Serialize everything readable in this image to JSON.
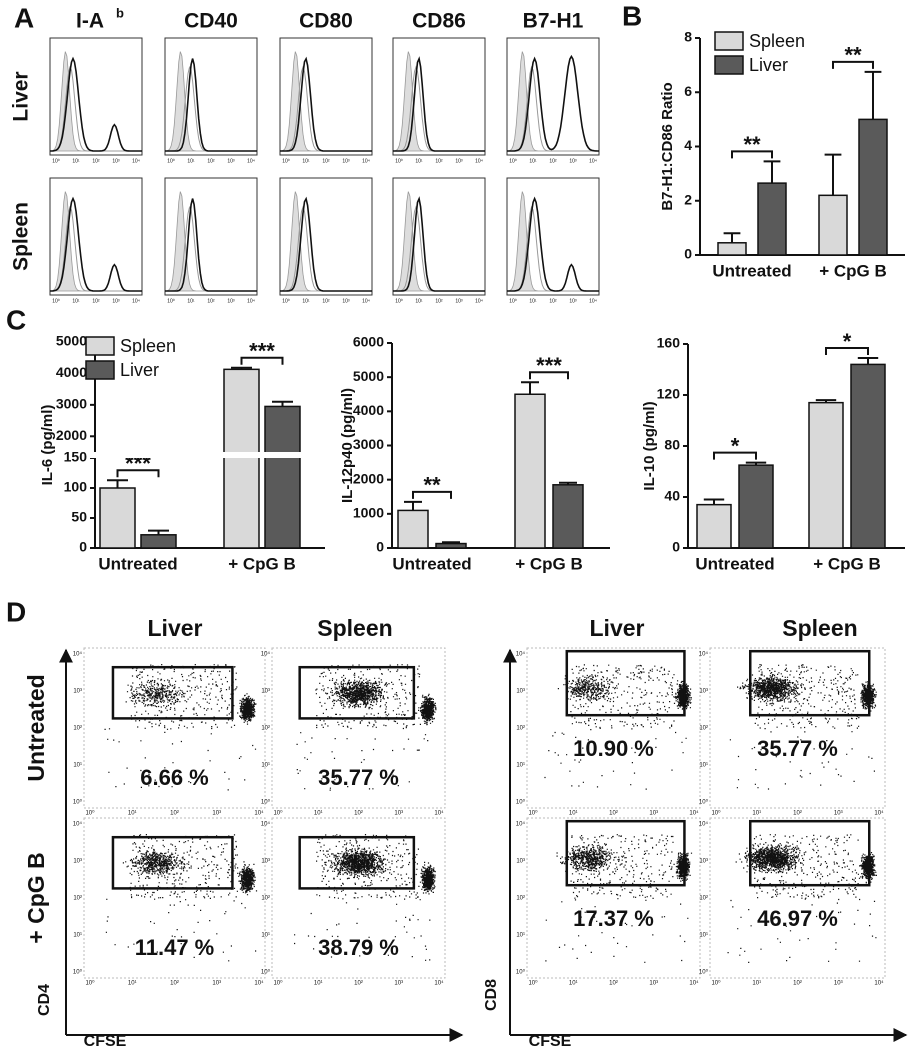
{
  "panel_labels": [
    "A",
    "B",
    "C",
    "D"
  ],
  "panel_a": {
    "columns": [
      "I-A",
      "CD40",
      "CD80",
      "CD86",
      "B7-H1"
    ],
    "first_column_sup": "b",
    "rows": [
      "Liver",
      "Spleen"
    ]
  },
  "log_tick_labels": [
    "10⁰",
    "10¹",
    "10²",
    "10³",
    "10⁴"
  ],
  "chart_data": [
    {
      "type": "bar",
      "y_label": "B7-H1:CD86 Ratio",
      "categories": [
        "Untreated",
        "+ CpG B"
      ],
      "series": [
        {
          "name": "Spleen",
          "color": "#d9d9d9",
          "values": [
            0.45,
            2.2
          ],
          "errors": [
            0.35,
            1.5
          ]
        },
        {
          "name": "Liver",
          "color": "#5a5a5a",
          "values": [
            2.65,
            5.0
          ],
          "errors": [
            0.8,
            1.75
          ]
        }
      ],
      "significance": [
        "**",
        "**"
      ],
      "ylim": [
        0,
        8
      ],
      "yticks": [
        0,
        2,
        4,
        6,
        8
      ],
      "legend": "upper left"
    },
    {
      "type": "bar",
      "y_label": "IL-6 (pg/ml)",
      "categories": [
        "Untreated",
        "+ CpG B"
      ],
      "series": [
        {
          "name": "Spleen",
          "color": "#d9d9d9",
          "values": [
            100,
            4130
          ],
          "errors": [
            13,
            50
          ]
        },
        {
          "name": "Liver",
          "color": "#5a5a5a",
          "values": [
            22,
            2950
          ],
          "errors": [
            7,
            150
          ]
        }
      ],
      "significance": [
        "***",
        "***"
      ],
      "ylim": [
        0,
        5000
      ],
      "axis_break": [
        150,
        1500
      ],
      "yticks": [
        0,
        50,
        100,
        150,
        2000,
        3000,
        4000,
        5000
      ],
      "legend": "upper left"
    },
    {
      "type": "bar",
      "y_label": "IL-12p40 (pg/ml)",
      "categories": [
        "Untreated",
        "+ CpG B"
      ],
      "series": [
        {
          "name": "Spleen",
          "color": "#d9d9d9",
          "values": [
            1100,
            4500
          ],
          "errors": [
            250,
            350
          ]
        },
        {
          "name": "Liver",
          "color": "#5a5a5a",
          "values": [
            130,
            1850
          ],
          "errors": [
            40,
            60
          ]
        }
      ],
      "significance": [
        "**",
        "***"
      ],
      "ylim": [
        0,
        6000
      ],
      "yticks": [
        0,
        1000,
        2000,
        3000,
        4000,
        5000,
        6000
      ]
    },
    {
      "type": "bar",
      "y_label": "IL-10 (pg/ml)",
      "categories": [
        "Untreated",
        "+ CpG B"
      ],
      "series": [
        {
          "name": "Spleen",
          "color": "#d9d9d9",
          "values": [
            34,
            114
          ],
          "errors": [
            4,
            2
          ]
        },
        {
          "name": "Liver",
          "color": "#5a5a5a",
          "values": [
            65,
            144
          ],
          "errors": [
            2,
            5
          ]
        }
      ],
      "significance": [
        "*",
        "*"
      ],
      "ylim": [
        0,
        160
      ],
      "yticks": [
        0,
        40,
        80,
        120,
        160
      ]
    }
  ],
  "panel_d": {
    "columns": [
      "Liver",
      "Spleen",
      "Liver",
      "Spleen"
    ],
    "rows": [
      "Untreated",
      "+ CpG B"
    ],
    "y_labels": [
      "CD4",
      "CD8"
    ],
    "x_labels": [
      "CFSE",
      "CFSE"
    ],
    "percentages": [
      [
        "6.66 %",
        "35.77 %",
        "10.90 %",
        "35.77 %"
      ],
      [
        "11.47 %",
        "38.79 %",
        "17.37 %",
        "46.97 %"
      ]
    ]
  }
}
